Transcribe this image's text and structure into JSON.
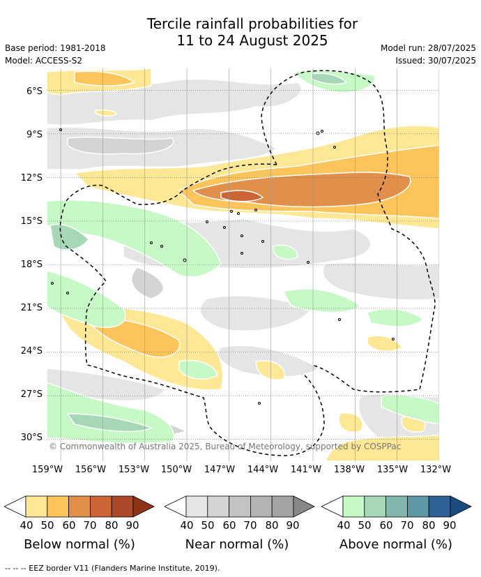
{
  "title": {
    "line1": "Tercile rainfall probabilities for",
    "line2": "11 to 24 August 2025"
  },
  "meta": {
    "base_period": "Base period: 1981-2018",
    "model": "Model: ACCESS-S2",
    "model_run": "Model run: 28/07/2025",
    "issued": "Issued: 30/07/2025"
  },
  "map": {
    "copyright": "© Commonwealth of Australia 2025, Bureau of Meteorology, supported by COSPPac",
    "lat_labels": [
      "6°S",
      "9°S",
      "12°S",
      "15°S",
      "18°S",
      "21°S",
      "24°S",
      "27°S",
      "30°S"
    ],
    "lon_labels": [
      "159°W",
      "156°W",
      "153°W",
      "150°W",
      "147°W",
      "144°W",
      "141°W",
      "138°W",
      "135°W",
      "132°W"
    ],
    "lon_range": [
      -160,
      -132
    ],
    "lat_range": [
      -4.5,
      -31.5
    ],
    "colors": {
      "below": [
        "#fee895",
        "#fcc45a",
        "#e0904a",
        "#cc6536",
        "#ab4827",
        "#8e3318"
      ],
      "near": [
        "#e5e5e5",
        "#d4d4d4",
        "#c3c3c3",
        "#b3b3b3",
        "#a3a3a3",
        "#888888"
      ],
      "above": [
        "#c7f9c7",
        "#a6d8b8",
        "#80b6ae",
        "#5f98a4",
        "#2f6096",
        "#1a4a80"
      ]
    }
  },
  "legend": {
    "ticks": [
      "40",
      "50",
      "60",
      "70",
      "80",
      "90"
    ],
    "below_label": "Below normal (%)",
    "near_label": "Near normal (%)",
    "above_label": "Above normal (%)"
  },
  "footnote": "--  --  -- EEZ border V11 (Flanders Marine Institute, 2019)."
}
